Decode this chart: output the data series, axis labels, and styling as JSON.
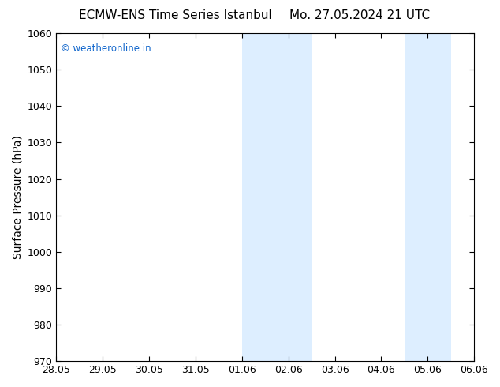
{
  "title_left": "ECMW-ENS Time Series Istanbul",
  "title_right": "Mo. 27.05.2024 21 UTC",
  "ylabel": "Surface Pressure (hPa)",
  "ylim": [
    970,
    1060
  ],
  "yticks": [
    970,
    980,
    990,
    1000,
    1010,
    1020,
    1030,
    1040,
    1050,
    1060
  ],
  "xtick_labels": [
    "28.05",
    "29.05",
    "30.05",
    "31.05",
    "01.06",
    "02.06",
    "03.06",
    "04.06",
    "05.06",
    "06.06"
  ],
  "xtick_positions": [
    0,
    1,
    2,
    3,
    4,
    5,
    6,
    7,
    8,
    9
  ],
  "shaded_bands": [
    {
      "x_start": 4.0,
      "x_end": 5.5
    },
    {
      "x_start": 7.5,
      "x_end": 8.5
    }
  ],
  "band_color": "#ddeeff",
  "watermark_text": "© weatheronline.in",
  "watermark_color": "#1166cc",
  "bg_color": "#ffffff",
  "title_fontsize": 11,
  "tick_fontsize": 9,
  "ylabel_fontsize": 10,
  "spine_color": "#000000",
  "tick_color": "#000000"
}
